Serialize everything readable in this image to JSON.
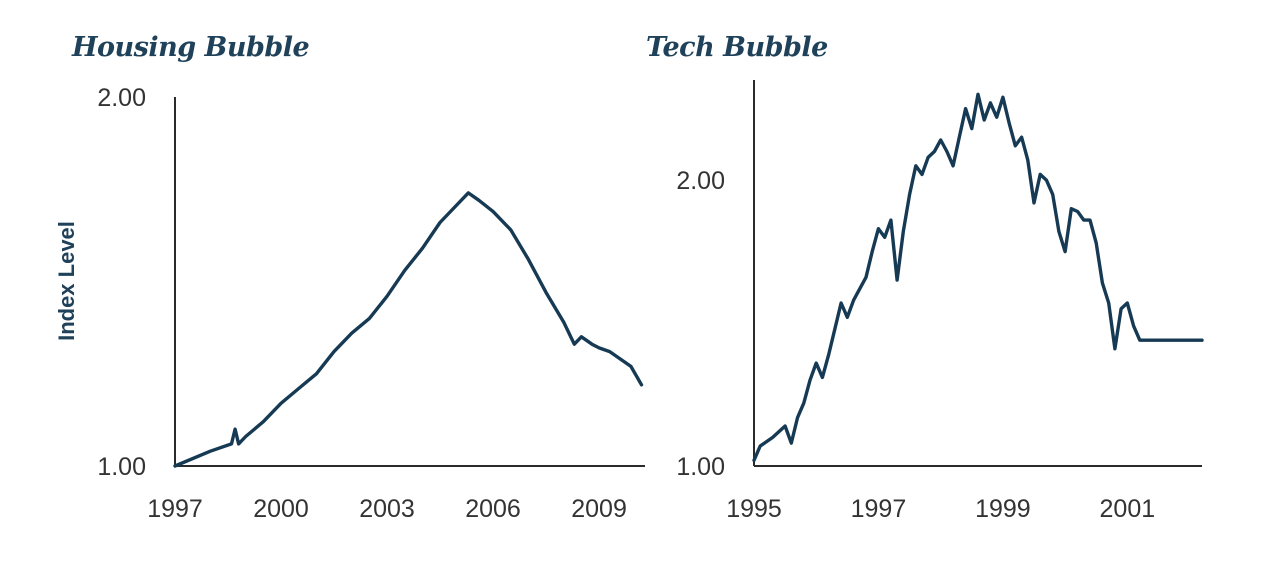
{
  "colors": {
    "title": "#1f4159",
    "line": "#173a54",
    "axis": "#2b2b2b",
    "tick_text": "#333333"
  },
  "chart_data": [
    {
      "type": "line",
      "title": "Housing Bubble",
      "ylabel": "Index Level",
      "xlabel": "",
      "xlim": [
        1997.0,
        2010.3
      ],
      "ylim": [
        1.0,
        2.0
      ],
      "x_ticks": [
        1997,
        2000,
        2003,
        2006,
        2009
      ],
      "y_ticks": [
        "1.00",
        "2.00"
      ],
      "series": [
        {
          "x": [
            1997.0,
            1998.0,
            1998.6,
            1998.7,
            1998.8,
            1999.0,
            1999.5,
            2000.0,
            2000.5,
            2001.0,
            2001.5,
            2002.0,
            2002.5,
            2003.0,
            2003.5,
            2004.0,
            2004.5,
            2005.0,
            2005.3,
            2005.6,
            2006.0,
            2006.5,
            2007.0,
            2007.5,
            2008.0,
            2008.3,
            2008.5,
            2008.8,
            2009.0,
            2009.3,
            2009.6,
            2009.9,
            2010.2
          ],
          "values": [
            1.0,
            1.04,
            1.06,
            1.1,
            1.06,
            1.08,
            1.12,
            1.17,
            1.21,
            1.25,
            1.31,
            1.36,
            1.4,
            1.46,
            1.53,
            1.59,
            1.66,
            1.71,
            1.74,
            1.72,
            1.69,
            1.64,
            1.56,
            1.47,
            1.39,
            1.33,
            1.35,
            1.33,
            1.32,
            1.31,
            1.29,
            1.27,
            1.22
          ]
        }
      ]
    },
    {
      "type": "line",
      "title": "Tech Bubble",
      "xlabel": "",
      "ylabel": "",
      "xlim": [
        1995.0,
        2002.2
      ],
      "ylim": [
        1.0,
        2.35
      ],
      "x_ticks": [
        1995,
        1997,
        1999,
        2001
      ],
      "y_ticks": [
        "1.00",
        "2.00"
      ],
      "series": [
        {
          "x": [
            1995.0,
            1995.1,
            1995.3,
            1995.5,
            1995.6,
            1995.7,
            1995.8,
            1995.9,
            1996.0,
            1996.1,
            1996.2,
            1996.3,
            1996.4,
            1996.5,
            1996.6,
            1996.7,
            1996.8,
            1996.9,
            1997.0,
            1997.1,
            1997.2,
            1997.3,
            1997.4,
            1997.5,
            1997.6,
            1997.7,
            1997.8,
            1997.9,
            1998.0,
            1998.1,
            1998.2,
            1998.3,
            1998.4,
            1998.5,
            1998.6,
            1998.7,
            1998.8,
            1998.9,
            1999.0,
            1999.1,
            1999.2,
            1999.3,
            1999.4,
            1999.5,
            1999.6,
            1999.7,
            1999.8,
            1999.9,
            2000.0,
            2000.1,
            2000.2,
            2000.3,
            2000.4,
            2000.5,
            2000.6,
            2000.7,
            2000.8,
            2000.9,
            2001.0,
            2001.1,
            2001.2,
            2001.3,
            2001.4,
            2001.5,
            2001.6,
            2001.7,
            2001.8,
            2001.9,
            2002.0,
            2002.2
          ],
          "values": [
            1.02,
            1.07,
            1.1,
            1.14,
            1.08,
            1.17,
            1.22,
            1.3,
            1.36,
            1.31,
            1.39,
            1.48,
            1.57,
            1.52,
            1.58,
            1.62,
            1.66,
            1.75,
            1.83,
            1.8,
            1.86,
            1.65,
            1.82,
            1.95,
            2.05,
            2.02,
            2.08,
            2.1,
            2.14,
            2.1,
            2.05,
            2.15,
            2.25,
            2.18,
            2.3,
            2.21,
            2.27,
            2.22,
            2.29,
            2.2,
            2.12,
            2.15,
            2.07,
            1.92,
            2.02,
            2.0,
            1.95,
            1.82,
            1.75,
            1.9,
            1.89,
            1.86,
            1.86,
            1.78,
            1.64,
            1.57,
            1.41,
            1.55,
            1.57,
            1.49,
            1.44,
            1.44,
            1.44,
            1.44,
            1.44,
            1.44,
            1.44,
            1.44,
            1.44,
            1.44
          ]
        }
      ]
    }
  ]
}
